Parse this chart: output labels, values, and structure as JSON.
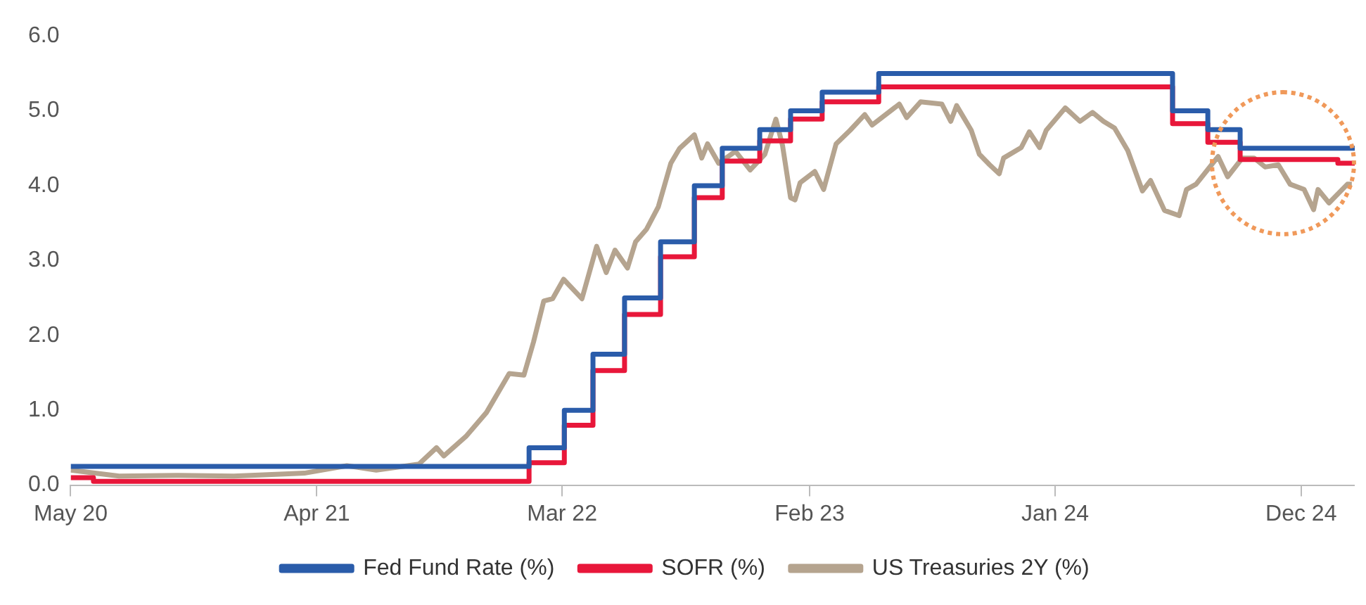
{
  "chart_data": {
    "type": "line",
    "xlim": [
      "2020-05-01",
      "2025-02-12"
    ],
    "xticks": [
      {
        "value": "2020-05",
        "label": "May 20"
      },
      {
        "value": "2021-04",
        "label": "Apr 21"
      },
      {
        "value": "2022-03",
        "label": "Mar 22"
      },
      {
        "value": "2023-02",
        "label": "Feb 23"
      },
      {
        "value": "2024-01",
        "label": "Jan 24"
      },
      {
        "value": "2024-12",
        "label": "Dec 24"
      }
    ],
    "ylim": [
      0,
      6
    ],
    "yticks": [
      {
        "value": 0,
        "label": "0.0"
      },
      {
        "value": 1,
        "label": "1.0"
      },
      {
        "value": 2,
        "label": "2.0"
      },
      {
        "value": 3,
        "label": "3.0"
      },
      {
        "value": 4,
        "label": "4.0"
      },
      {
        "value": 5,
        "label": "5.0"
      },
      {
        "value": 6,
        "label": "6.0"
      }
    ],
    "grid": false,
    "legend": "bottom",
    "marker": "none",
    "line_style": "solid",
    "series": [
      {
        "name": "Fed Fund Rate (%)",
        "type": "step",
        "color": "#2a5caa",
        "x": [
          "2020-05-01",
          "2022-01-15",
          "2022-03-04",
          "2022-04-12",
          "2022-05-25",
          "2022-07-13",
          "2022-08-28",
          "2022-10-05",
          "2022-11-25",
          "2023-01-06",
          "2023-02-18",
          "2023-05-06",
          "2024-06-09",
          "2024-07-27",
          "2024-09-09",
          "2025-02-12"
        ],
        "values": [
          0.25,
          0.5,
          1.0,
          1.75,
          2.5,
          3.25,
          4.0,
          4.5,
          4.75,
          5.0,
          5.25,
          5.5,
          5.0,
          4.75,
          4.5,
          4.5
        ]
      },
      {
        "name": "SOFR (%)",
        "type": "step",
        "color": "#e8173a",
        "x": [
          "2020-05-01",
          "2020-06-01",
          "2022-01-15",
          "2022-03-04",
          "2022-04-12",
          "2022-05-25",
          "2022-07-13",
          "2022-08-28",
          "2022-10-05",
          "2022-11-25",
          "2023-01-06",
          "2023-02-18",
          "2023-05-06",
          "2024-06-09",
          "2024-07-27",
          "2024-09-09",
          "2025-01-20",
          "2025-02-12"
        ],
        "values": [
          0.1,
          0.05,
          0.3,
          0.8,
          1.53,
          2.28,
          3.05,
          3.84,
          4.33,
          4.6,
          4.89,
          5.12,
          5.32,
          4.83,
          4.58,
          4.35,
          4.3,
          4.28
        ]
      },
      {
        "name": "US Treasuries 2Y (%)",
        "type": "line",
        "color": "#b5a48f",
        "x": [
          "2020-05-01",
          "2020-07-06",
          "2020-09-22",
          "2020-12-09",
          "2021-02-16",
          "2021-03-15",
          "2021-05-12",
          "2021-06-21",
          "2021-08-18",
          "2021-09-11",
          "2021-09-21",
          "2021-10-21",
          "2021-11-18",
          "2021-12-19",
          "2022-01-08",
          "2022-01-21",
          "2022-02-04",
          "2022-02-16",
          "2022-03-03",
          "2022-03-28",
          "2022-04-17",
          "2022-04-30",
          "2022-05-12",
          "2022-05-29",
          "2022-06-09",
          "2022-06-24",
          "2022-07-10",
          "2022-07-27",
          "2022-08-08",
          "2022-08-28",
          "2022-09-07",
          "2022-09-15",
          "2022-09-30",
          "2022-10-23",
          "2022-11-12",
          "2022-12-02",
          "2022-12-17",
          "2022-12-26",
          "2023-01-06",
          "2023-01-12",
          "2023-01-19",
          "2023-02-08",
          "2023-02-20",
          "2023-03-09",
          "2023-03-28",
          "2023-04-17",
          "2023-04-27",
          "2023-06-03",
          "2023-06-13",
          "2023-07-02",
          "2023-07-31",
          "2023-08-12",
          "2023-08-20",
          "2023-09-09",
          "2023-09-20",
          "2023-10-04",
          "2023-10-17",
          "2023-10-23",
          "2023-11-16",
          "2023-11-27",
          "2023-12-11",
          "2023-12-20",
          "2024-01-15",
          "2024-02-04",
          "2024-02-21",
          "2024-03-07",
          "2024-03-22",
          "2024-04-09",
          "2024-04-29",
          "2024-05-10",
          "2024-05-29",
          "2024-06-18",
          "2024-06-28",
          "2024-07-11",
          "2024-08-10",
          "2024-08-23",
          "2024-09-12",
          "2024-09-28",
          "2024-10-13",
          "2024-10-31",
          "2024-11-16",
          "2024-12-05",
          "2024-12-18",
          "2024-12-24",
          "2025-01-08",
          "2025-02-02",
          "2025-02-08"
        ],
        "values": [
          0.2,
          0.12,
          0.13,
          0.12,
          0.15,
          0.16,
          0.26,
          0.2,
          0.28,
          0.5,
          0.39,
          0.65,
          0.97,
          1.49,
          1.47,
          1.91,
          2.46,
          2.49,
          2.75,
          2.49,
          3.19,
          2.84,
          3.14,
          2.9,
          3.25,
          3.42,
          3.72,
          4.3,
          4.5,
          4.68,
          4.37,
          4.56,
          4.3,
          4.46,
          4.21,
          4.42,
          4.89,
          4.54,
          3.84,
          3.81,
          4.04,
          4.19,
          3.95,
          4.56,
          4.74,
          4.95,
          4.81,
          5.09,
          4.91,
          5.12,
          5.09,
          4.86,
          5.07,
          4.74,
          4.42,
          4.28,
          4.16,
          4.37,
          4.51,
          4.72,
          4.51,
          4.74,
          5.04,
          4.86,
          4.98,
          4.86,
          4.77,
          4.47,
          3.93,
          4.07,
          3.67,
          3.6,
          3.95,
          4.02,
          4.39,
          4.12,
          4.37,
          4.37,
          4.25,
          4.28,
          4.02,
          3.95,
          3.68,
          3.95,
          3.77,
          4.02,
          4.02
        ]
      }
    ]
  }
}
